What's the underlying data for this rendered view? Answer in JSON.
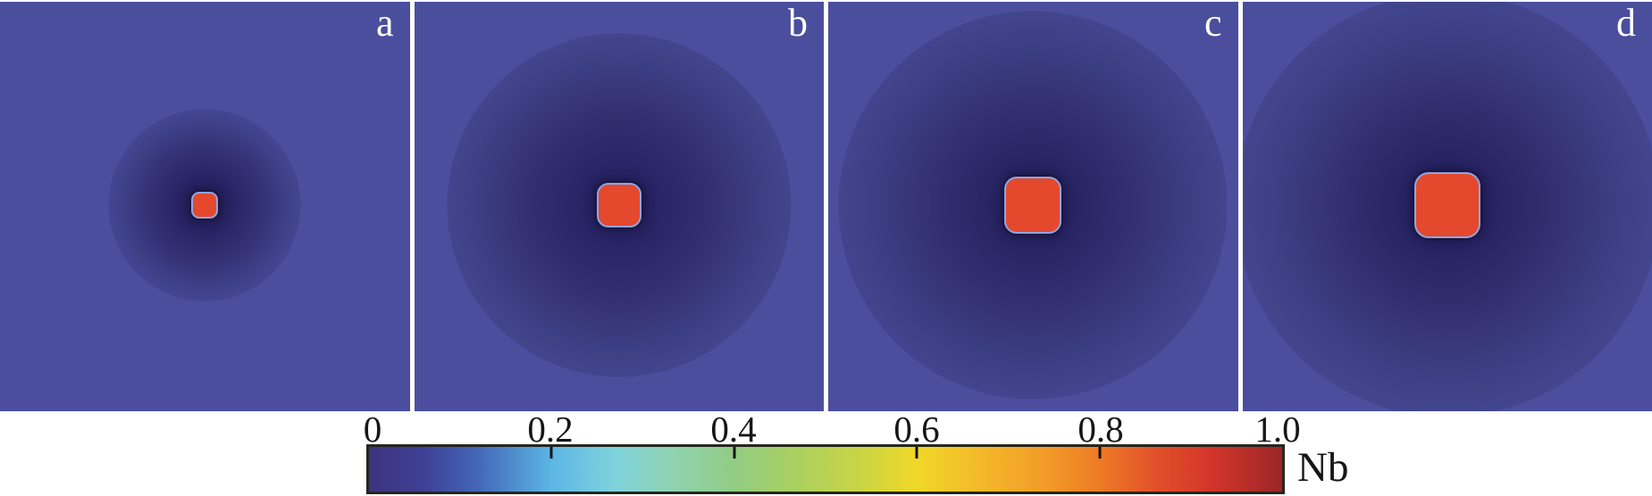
{
  "figure": {
    "panels": [
      {
        "label": "a"
      },
      {
        "label": "b"
      },
      {
        "label": "c"
      },
      {
        "label": "d"
      }
    ],
    "colorbar": {
      "title": "Nb",
      "ticks": [
        "0",
        "0.2",
        "0.4",
        "0.6",
        "0.8",
        "1.0"
      ],
      "min": 0,
      "max": 1.0
    },
    "colors": {
      "matrix_blue": "#4a4e9d",
      "depletion_dark": "#221e50",
      "precipitate_red": "#e4492e",
      "interface_outline": "#8ea6e0",
      "colorbar_left": "#3d3380",
      "colorbar_right": "#9c2526"
    }
  },
  "chart_data": {
    "type": "heatmap",
    "title": "",
    "colorbar_label": "Nb",
    "colorbar_range": [
      0,
      1.0
    ],
    "colorbar_ticks": [
      0,
      0.2,
      0.4,
      0.6,
      0.8,
      1.0
    ],
    "colormap": "jet-like (dark blue -> blue -> cyan -> green -> yellow -> orange -> dark red)",
    "layout": {
      "panel_count": 4,
      "panel_size_px": [
        458,
        459
      ],
      "colorbar_below": true
    },
    "panels": [
      {
        "label": "a",
        "precipitate_size_px": 30,
        "depletion_halo_radius_px": 105
      },
      {
        "label": "b",
        "precipitate_size_px": 50,
        "depletion_halo_radius_px": 190
      },
      {
        "label": "c",
        "precipitate_size_px": 64,
        "depletion_halo_radius_px": 215
      },
      {
        "label": "d",
        "precipitate_size_px": 74,
        "depletion_halo_radius_px": 235
      }
    ],
    "value_estimates": {
      "precipitate_nb": 0.88,
      "matrix_nb": 0.07,
      "depletion_zone_nb": 0.02,
      "interface_ring_nb": 0.25
    }
  }
}
